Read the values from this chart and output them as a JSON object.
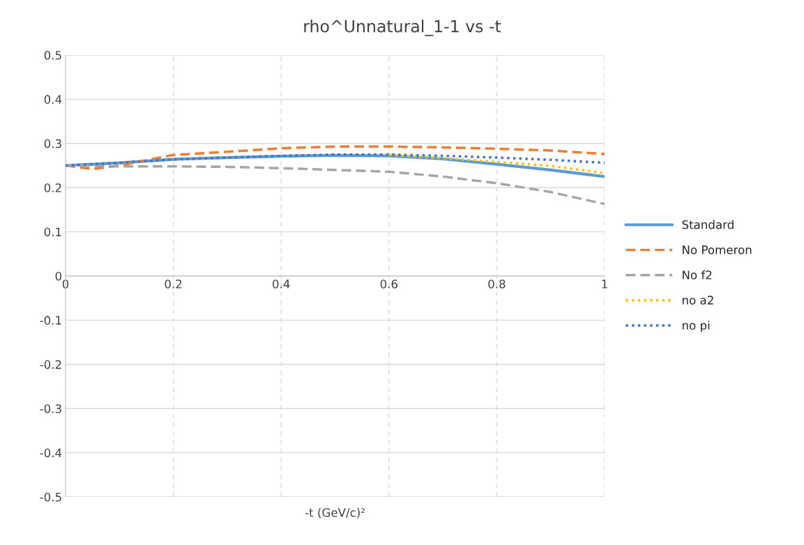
{
  "chart_data": {
    "type": "line",
    "title": "rho^Unnatural_1-1 vs -t",
    "xlabel": "-t (GeV/c)²",
    "x": [
      0,
      0.05,
      0.1,
      0.15,
      0.2,
      0.3,
      0.4,
      0.5,
      0.6,
      0.7,
      0.8,
      0.9,
      1
    ],
    "series": [
      {
        "name": "Standard",
        "color": "#5b9bd5",
        "line_style": "solid",
        "values": [
          0.25,
          0.253,
          0.256,
          0.26,
          0.264,
          0.268,
          0.271,
          0.273,
          0.272,
          0.265,
          0.253,
          0.24,
          0.225
        ]
      },
      {
        "name": "No Pomeron",
        "color": "#ed7d31",
        "line_style": "dashed",
        "values": [
          0.25,
          0.242,
          0.25,
          0.262,
          0.274,
          0.281,
          0.289,
          0.293,
          0.293,
          0.291,
          0.288,
          0.284,
          0.276
        ]
      },
      {
        "name": "No f2",
        "color": "#a5a5a5",
        "line_style": "dashed",
        "values": [
          0.25,
          0.249,
          0.248,
          0.248,
          0.248,
          0.247,
          0.244,
          0.24,
          0.236,
          0.225,
          0.21,
          0.19,
          0.163
        ]
      },
      {
        "name": "no a2",
        "color": "#ffc000",
        "line_style": "dotted",
        "values": [
          null,
          null,
          null,
          null,
          null,
          null,
          null,
          null,
          0.274,
          0.267,
          0.258,
          0.249,
          0.233
        ]
      },
      {
        "name": "no pi",
        "color": "#4472c4",
        "line_style": "dotted",
        "values": [
          0.25,
          0.253,
          0.256,
          0.26,
          0.264,
          0.268,
          0.272,
          0.275,
          0.275,
          0.272,
          0.268,
          0.263,
          0.256
        ]
      }
    ],
    "xlim": [
      0,
      1
    ],
    "xticks": [
      0,
      0.2,
      0.4,
      0.6,
      0.8,
      1
    ],
    "ylim": [
      -0.5,
      0.5
    ],
    "yticks": [
      -0.5,
      -0.4,
      -0.3,
      -0.2,
      -0.1,
      0,
      0.1,
      0.2,
      0.3,
      0.4,
      0.5
    ],
    "grid": true,
    "legend": "right",
    "marker": "none"
  }
}
